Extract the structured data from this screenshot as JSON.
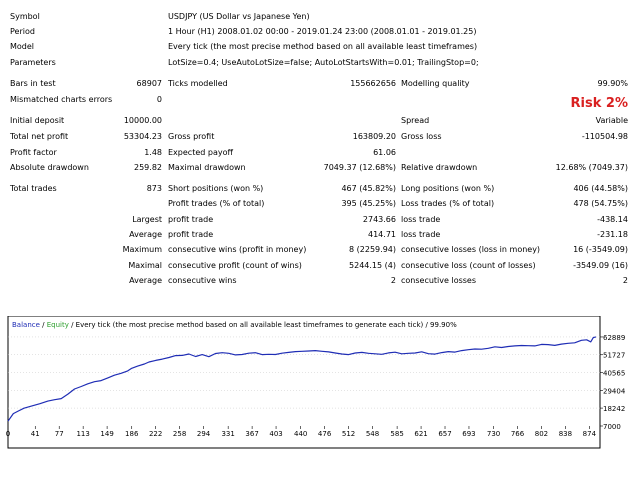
{
  "report": {
    "symbol": {
      "label": "Symbol",
      "value": "USDJPY (US Dollar vs Japanese Yen)"
    },
    "period": {
      "label": "Period",
      "value": "1 Hour (H1) 2008.01.02 00:00 - 2019.01.24 23:00 (2008.01.01 - 2019.01.25)"
    },
    "model": {
      "label": "Model",
      "value": "Every tick (the most precise method based on all available least timeframes)"
    },
    "parameters": {
      "label": "Parameters",
      "value": "LotSize=0.4; UseAutoLotSize=false; AutoLotStartsWith=0.01; TrailingStop=0;"
    },
    "bars_in_test": {
      "label": "Bars in test",
      "value": "68907"
    },
    "ticks_modelled": {
      "label": "Ticks modelled",
      "value": "155662656"
    },
    "modelling_quality": {
      "label": "Modelling quality",
      "value": "99.90%"
    },
    "mismatched": {
      "label": "Mismatched charts errors",
      "value": "0"
    },
    "risk": "Risk 2%",
    "initial_deposit": {
      "label": "Initial deposit",
      "value": "10000.00"
    },
    "spread": {
      "label": "Spread",
      "value": "Variable"
    },
    "total_net_profit": {
      "label": "Total net profit",
      "value": "53304.23"
    },
    "gross_profit": {
      "label": "Gross profit",
      "value": "163809.20"
    },
    "gross_loss": {
      "label": "Gross loss",
      "value": "-110504.98"
    },
    "profit_factor": {
      "label": "Profit factor",
      "value": "1.48"
    },
    "expected_payoff": {
      "label": "Expected payoff",
      "value": "61.06"
    },
    "absolute_drawdown": {
      "label": "Absolute drawdown",
      "value": "259.82"
    },
    "maximal_drawdown": {
      "label": "Maximal drawdown",
      "value": "7049.37 (12.68%)"
    },
    "relative_drawdown": {
      "label": "Relative drawdown",
      "value": "12.68% (7049.37)"
    },
    "total_trades": {
      "label": "Total trades",
      "value": "873"
    },
    "short_positions": {
      "label": "Short positions (won %)",
      "value": "467 (45.82%)"
    },
    "long_positions": {
      "label": "Long positions (won %)",
      "value": "406 (44.58%)"
    },
    "profit_trades": {
      "label": "Profit trades (% of total)",
      "value": "395 (45.25%)"
    },
    "loss_trades": {
      "label": "Loss trades (% of total)",
      "value": "478 (54.75%)"
    },
    "largest": {
      "prefix": "Largest",
      "profit_label": "profit trade",
      "profit_value": "2743.66",
      "loss_label": "loss trade",
      "loss_value": "-438.14"
    },
    "average": {
      "prefix": "Average",
      "profit_label": "profit trade",
      "profit_value": "414.71",
      "loss_label": "loss trade",
      "loss_value": "-231.18"
    },
    "maximum": {
      "prefix": "Maximum",
      "wins_label": "consecutive wins (profit in money)",
      "wins_value": "8 (2259.94)",
      "losses_label": "consecutive losses (loss in money)",
      "losses_value": "16 (-3549.09)"
    },
    "maximal": {
      "prefix": "Maximal",
      "profit_label": "consecutive profit (count of wins)",
      "profit_value": "5244.15 (4)",
      "loss_label": "consecutive loss (count of losses)",
      "loss_value": "-3549.09 (16)"
    },
    "average_consecutive": {
      "prefix": "Average",
      "wins_label": "consecutive wins",
      "wins_value": "2",
      "losses_label": "consecutive losses",
      "losses_value": "2"
    }
  },
  "chart_data": {
    "type": "line",
    "legend": {
      "balance": "Balance",
      "separator": " / ",
      "equity": "Equity",
      "rest": " / Every tick (the most precise method based on all available least timeframes to generate each tick) / 99.90%"
    },
    "colors": {
      "balance": "#1f2db5",
      "equity": "#2ea02e",
      "frame": "#000000",
      "grid": "#c8c8c8"
    },
    "x_ticks": [
      0,
      41,
      77,
      113,
      149,
      186,
      222,
      258,
      294,
      331,
      367,
      403,
      440,
      476,
      512,
      548,
      585,
      621,
      657,
      693,
      730,
      766,
      802,
      838,
      874
    ],
    "y_ticks": [
      7000,
      18242,
      29404,
      40565,
      51727,
      62889
    ],
    "xlim": [
      0,
      890
    ],
    "ylim": [
      7000,
      66000
    ],
    "series": [
      {
        "name": "Balance",
        "x": [
          0,
          8,
          16,
          24,
          36,
          48,
          60,
          70,
          80,
          90,
          100,
          110,
          120,
          130,
          140,
          150,
          160,
          170,
          180,
          186,
          195,
          205,
          212,
          222,
          232,
          242,
          252,
          262,
          272,
          282,
          292,
          302,
          312,
          322,
          332,
          342,
          352,
          362,
          372,
          382,
          392,
          402,
          412,
          422,
          432,
          442,
          452,
          462,
          472,
          482,
          492,
          502,
          512,
          522,
          532,
          542,
          552,
          562,
          572,
          582,
          592,
          602,
          612,
          622,
          632,
          642,
          652,
          662,
          672,
          682,
          692,
          702,
          712,
          722,
          732,
          742,
          752,
          762,
          772,
          782,
          792,
          802,
          812,
          822,
          832,
          842,
          852,
          862,
          870,
          876,
          880,
          884
        ],
        "y": [
          10000,
          14800,
          16500,
          18200,
          19600,
          21000,
          22600,
          23500,
          24200,
          27000,
          30200,
          31800,
          33500,
          34800,
          35500,
          37200,
          38900,
          40100,
          41600,
          43200,
          44600,
          45900,
          47200,
          48200,
          49000,
          50000,
          51200,
          51300,
          52200,
          50600,
          51800,
          50500,
          52500,
          53000,
          52600,
          51600,
          51900,
          52700,
          53000,
          51800,
          52000,
          51900,
          52700,
          53200,
          53700,
          53900,
          54100,
          54300,
          53900,
          53500,
          52800,
          52200,
          51800,
          52800,
          53200,
          52600,
          52300,
          52000,
          52900,
          53300,
          52300,
          52600,
          52800,
          53600,
          52400,
          52100,
          53100,
          53700,
          53400,
          54300,
          54900,
          55300,
          55200,
          55800,
          56700,
          56300,
          56900,
          57300,
          57500,
          57400,
          57300,
          58200,
          58100,
          57600,
          58400,
          58900,
          59200,
          60800,
          61100,
          59800,
          62500,
          62900
        ]
      }
    ]
  }
}
